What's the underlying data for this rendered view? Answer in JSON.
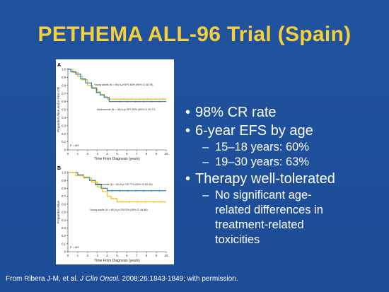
{
  "slide": {
    "title": "PETHEMA ALL-96 Trial (Spain)",
    "colors": {
      "background": "#1f4f9b",
      "title": "#f5cf3c",
      "text": "#ffffff"
    }
  },
  "bullets": [
    {
      "text": "98% CR rate",
      "level": 1
    },
    {
      "text": "6-year EFS by age",
      "level": 1
    },
    {
      "text": "15–18 years: 60%",
      "level": 2
    },
    {
      "text": "19–30 years: 63%",
      "level": 2
    },
    {
      "text": "Therapy well-tolerated",
      "level": 1
    },
    {
      "text": "No significant age-",
      "level": 2
    },
    {
      "text": "related differences in",
      "level": 2,
      "continuation": true
    },
    {
      "text": "treatment-related",
      "level": 2,
      "continuation": true
    },
    {
      "text": "toxicities",
      "level": 2,
      "continuation": true
    }
  ],
  "citation": {
    "prefix": "From Ribera J-M, et al.",
    "journal": "J Clin Oncol.",
    "suffix": "2008;26:1843-1849; with permission."
  },
  "chart_data": [
    {
      "panel": "A",
      "type": "line",
      "step": true,
      "ylabel": "Proportion Alive and in First CR",
      "xlabel": "Time From Diagnosis (years)",
      "xlim": [
        0,
        10
      ],
      "ylim": [
        0,
        1.0
      ],
      "xticks": [
        "0",
        "1",
        "2",
        "3",
        "4",
        "5",
        "6",
        "7",
        "8",
        "9",
        "10"
      ],
      "yticks": [
        "0",
        "0.1",
        "0.2",
        "0.3",
        "0.4",
        "0.5",
        "0.6",
        "0.7",
        "0.8",
        "0.9",
        "1.0"
      ],
      "annotation": "P = NS",
      "series": [
        {
          "name": "Young adults (N = 46)  6-yr EFS 63%  (95% CI 48-78)",
          "color": "#f2c21a",
          "x": [
            0,
            0.5,
            1.0,
            1.5,
            2.0,
            2.5,
            3.0,
            3.3,
            3.7,
            4.0,
            4.4,
            10.0
          ],
          "y": [
            1.0,
            0.96,
            0.91,
            0.87,
            0.8,
            0.76,
            0.72,
            0.69,
            0.66,
            0.63,
            0.63,
            0.63
          ]
        },
        {
          "name": "Adolescents (N = 35)  6-yr EFS 60%  (95% CI 43-77)",
          "color": "#2e86c8",
          "x": [
            0,
            0.3,
            0.8,
            1.3,
            1.8,
            2.4,
            2.9,
            3.3,
            3.7,
            4.2,
            4.8,
            10.0
          ],
          "y": [
            1.0,
            0.97,
            0.94,
            0.88,
            0.83,
            0.77,
            0.71,
            0.68,
            0.65,
            0.6,
            0.6,
            0.6
          ]
        }
      ]
    },
    {
      "panel": "B",
      "type": "line",
      "step": true,
      "ylabel": "Proportion Alive",
      "xlabel": "Time From Diagnosis (years)",
      "xlim": [
        0,
        10
      ],
      "ylim": [
        0,
        1.0
      ],
      "xticks": [
        "0",
        "1",
        "2",
        "3",
        "4",
        "5",
        "6",
        "7",
        "8",
        "9",
        "10"
      ],
      "yticks": [
        "0",
        "0.1",
        "0.2",
        "0.3",
        "0.4",
        "0.5",
        "0.6",
        "0.7",
        "0.8",
        "0.9",
        "1.0"
      ],
      "annotation": "P = NS",
      "series": [
        {
          "name": "Adolescents (N = 35)  6-yr OS 77%  (95% CI 62-90)",
          "color": "#2e86c8",
          "x": [
            0,
            1.0,
            1.6,
            2.2,
            2.8,
            3.4,
            4.0,
            10.0
          ],
          "y": [
            1.0,
            0.97,
            0.94,
            0.9,
            0.85,
            0.8,
            0.77,
            0.77
          ]
        },
        {
          "name": "Young adults (N = 46)  6-yr OS 63%  (95% CI 48-80)",
          "color": "#f2c21a",
          "x": [
            0,
            0.8,
            1.6,
            2.4,
            3.0,
            3.5,
            4.0,
            4.4,
            5.0,
            10.0
          ],
          "y": [
            1.0,
            0.96,
            0.93,
            0.88,
            0.82,
            0.76,
            0.7,
            0.67,
            0.63,
            0.63
          ]
        }
      ]
    }
  ]
}
